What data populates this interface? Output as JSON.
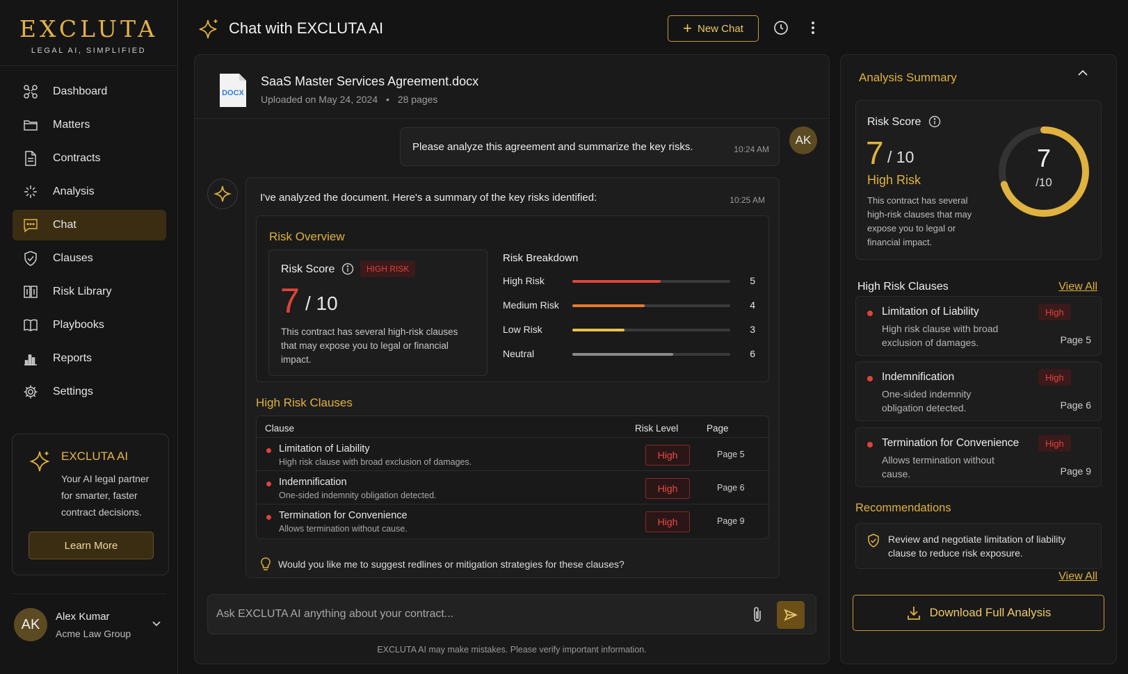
{
  "brand": {
    "name": "EXCLUTA",
    "tagline": "LEGAL AI, SIMPLIFIED"
  },
  "sidebar": {
    "items": [
      {
        "label": "Dashboard",
        "icon": "dashboard-icon"
      },
      {
        "label": "Matters",
        "icon": "folder-icon"
      },
      {
        "label": "Contracts",
        "icon": "document-icon"
      },
      {
        "label": "Analysis",
        "icon": "sparkle-icon"
      },
      {
        "label": "Chat",
        "icon": "chat-icon",
        "active": true
      },
      {
        "label": "Clauses",
        "icon": "shield-icon"
      },
      {
        "label": "Risk Library",
        "icon": "library-icon"
      },
      {
        "label": "Playbooks",
        "icon": "book-icon"
      },
      {
        "label": "Reports",
        "icon": "bar-chart-icon"
      },
      {
        "label": "Settings",
        "icon": "gear-icon"
      }
    ],
    "promo": {
      "title": "EXCLUTA AI",
      "text": "Your AI legal partner for smarter, faster contract decisions.",
      "button": "Learn More"
    },
    "user": {
      "initials": "AK",
      "name": "Alex Kumar",
      "org": "Acme Law Group"
    }
  },
  "header": {
    "title": "Chat with EXCLUTA AI",
    "new_chat": "New Chat"
  },
  "document": {
    "name": "SaaS Master Services Agreement.docx",
    "type_label": "DOCX",
    "uploaded": "Uploaded on May 24, 2024",
    "separator": "•",
    "pages": "28 pages"
  },
  "user_message": {
    "text": "Please analyze this agreement and summarize the key risks.",
    "time": "10:24 AM",
    "avatar": "AK"
  },
  "ai_message": {
    "intro": "I've analyzed the document. Here's a summary of the key risks identified:",
    "time": "10:25 AM",
    "risk_overview": {
      "title": "Risk Overview",
      "score_label": "Risk Score",
      "badge": "HIGH RISK",
      "score": "7",
      "out_of": "/ 10",
      "description": "This contract has several high-risk clauses that may expose you to legal or financial impact.",
      "breakdown_title": "Risk Breakdown",
      "breakdown": [
        {
          "label": "High Risk",
          "value": 5,
          "fill": 0.56,
          "color": "#e0433b"
        },
        {
          "label": "Medium Risk",
          "value": 4,
          "fill": 0.46,
          "color": "#e8792e"
        },
        {
          "label": "Low Risk",
          "value": 3,
          "fill": 0.33,
          "color": "#e6c24a"
        },
        {
          "label": "Neutral",
          "value": 6,
          "fill": 0.64,
          "color": "#8a8a8a"
        }
      ]
    },
    "high_risk_clauses": {
      "title": "High Risk Clauses",
      "columns": [
        "Clause",
        "Risk Level",
        "Page"
      ],
      "rows": [
        {
          "name": "Limitation of Liability",
          "desc": "High risk clause with broad exclusion of damages.",
          "level": "High",
          "page": "Page 5"
        },
        {
          "name": "Indemnification",
          "desc": "One-sided indemnity obligation detected.",
          "level": "High",
          "page": "Page 6"
        },
        {
          "name": "Termination for Convenience",
          "desc": "Allows termination without cause.",
          "level": "High",
          "page": "Page 9"
        }
      ]
    },
    "suggestion": "Would you like me to suggest redlines or mitigation strategies for these clauses?"
  },
  "input": {
    "placeholder": "Ask EXCLUTA AI anything about your contract..."
  },
  "disclaimer": "EXCLUTA AI may make mistakes. Please verify important information.",
  "summary": {
    "title": "Analysis Summary",
    "score_label": "Risk Score",
    "score": "7",
    "out_of": "/ 10",
    "ring_out_of": "/10",
    "ring_fraction": 0.7,
    "level": "High Risk",
    "description": "This contract has several high-risk clauses that may expose you to legal or financial impact.",
    "clauses_title": "High Risk Clauses",
    "view_all": "View All",
    "clauses": [
      {
        "name": "Limitation of Liability",
        "desc": "High risk clause with broad exclusion of damages.",
        "badge": "High",
        "page": "Page 5"
      },
      {
        "name": "Indemnification",
        "desc": "One-sided indemnity obligation detected.",
        "badge": "High",
        "page": "Page 6"
      },
      {
        "name": "Termination for Convenience",
        "desc": "Allows termination without cause.",
        "badge": "High",
        "page": "Page 9"
      }
    ],
    "recommendations_title": "Recommendations",
    "recommendation": "Review and negotiate limitation of liability clause to reduce risk exposure.",
    "view_all_2": "View All",
    "download": "Download Full Analysis"
  },
  "colors": {
    "accent": "#e0b23f",
    "danger": "#e0433b",
    "background": "#141414"
  }
}
